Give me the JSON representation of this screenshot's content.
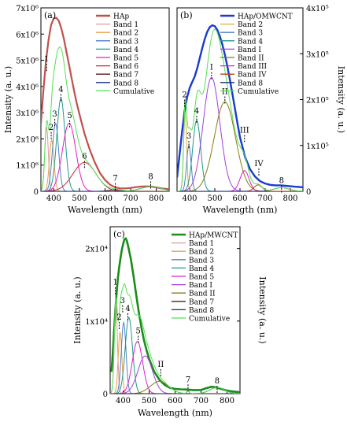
{
  "figure": {
    "aria": "Photoluminescence band deconvolution panels"
  },
  "chart_data": [
    {
      "type": "line",
      "panel_label": "(a)",
      "xlabel": "Wavelength (nm)",
      "ylabel": "Intensity (a. u.)",
      "ylabel_side": "left",
      "xlim": [
        350,
        850
      ],
      "xticks": [
        400,
        500,
        600,
        700,
        800
      ],
      "ylim": [
        0,
        7000000
      ],
      "yticks": [
        {
          "value": 0,
          "label": "0"
        },
        {
          "value": 1000000,
          "label": "1x10⁶"
        },
        {
          "value": 2000000,
          "label": "2x10⁶"
        },
        {
          "value": 3000000,
          "label": "3x10⁶"
        },
        {
          "value": 4000000,
          "label": "4x10⁶"
        },
        {
          "value": 5000000,
          "label": "5x10⁶"
        },
        {
          "value": 6000000,
          "label": "6x10⁶"
        },
        {
          "value": 7000000,
          "label": "7x10⁶"
        }
      ],
      "series": [
        {
          "name": "HAp",
          "kind": "main",
          "color": "#c0504d",
          "width": 2.2,
          "x": [
            350,
            360,
            370,
            380,
            390,
            400,
            410,
            420,
            430,
            440,
            450,
            460,
            470,
            480,
            490,
            500,
            520,
            540,
            560,
            580,
            600,
            620,
            640,
            660,
            680,
            700,
            720,
            740,
            760,
            780,
            800,
            820,
            850
          ],
          "y": [
            2600000,
            3900000,
            5000000,
            5800000,
            6350000,
            6600000,
            6620000,
            6500000,
            6200000,
            5800000,
            5300000,
            4800000,
            4300000,
            3800000,
            3350000,
            2950000,
            2200000,
            1600000,
            1100000,
            700000,
            430000,
            250000,
            150000,
            110000,
            110000,
            130000,
            160000,
            180000,
            190000,
            180000,
            150000,
            110000,
            80000
          ]
        },
        {
          "name": "Band 1",
          "kind": "band",
          "color": "#e39a9a",
          "center": 372,
          "amp": 2450000,
          "sigma": 7
        },
        {
          "name": "Band 2",
          "kind": "band",
          "color": "#e8a24a",
          "center": 392,
          "amp": 1950000,
          "sigma": 9
        },
        {
          "name": "Band 3",
          "kind": "band",
          "color": "#4f7fc4",
          "center": 407,
          "amp": 2600000,
          "sigma": 12
        },
        {
          "name": "Band 4",
          "kind": "band",
          "color": "#1f9a8a",
          "center": 428,
          "amp": 3550000,
          "sigma": 16
        },
        {
          "name": "Band 5",
          "kind": "band",
          "color": "#e020c8",
          "center": 460,
          "amp": 2600000,
          "sigma": 26
        },
        {
          "name": "Band 6",
          "kind": "band",
          "color": "#c62838",
          "center": 520,
          "amp": 1100000,
          "sigma": 45
        },
        {
          "name": "Band 7",
          "kind": "band",
          "color": "#5a1a1a",
          "center": 640,
          "amp": 60000,
          "sigma": 25
        },
        {
          "name": "Band 8",
          "kind": "band",
          "color": "#1a2a7a",
          "center": 780,
          "amp": 180000,
          "sigma": 40
        },
        {
          "name": "Cumulative",
          "kind": "cumulative",
          "color": "#55e055",
          "width": 1
        }
      ],
      "peak_labels": [
        {
          "text": "1",
          "x": 372,
          "y": 4950000
        },
        {
          "text": "2",
          "x": 390,
          "y": 2350000
        },
        {
          "text": "3",
          "x": 404,
          "y": 2850000
        },
        {
          "text": "4",
          "x": 428,
          "y": 3800000
        },
        {
          "text": "5",
          "x": 462,
          "y": 2800000
        },
        {
          "text": "6",
          "x": 520,
          "y": 1250000
        },
        {
          "text": "7",
          "x": 640,
          "y": 400000
        },
        {
          "text": "8",
          "x": 778,
          "y": 470000
        }
      ]
    },
    {
      "type": "line",
      "panel_label": "(b)",
      "xlabel": "Wavelength (nm)",
      "ylabel": "Intensity (a. u.)",
      "ylabel_side": "right",
      "xlim": [
        350,
        850
      ],
      "xticks": [
        400,
        500,
        600,
        700,
        800
      ],
      "ylim": [
        0,
        400000
      ],
      "yticks": [
        {
          "value": 0,
          "label": "0"
        },
        {
          "value": 100000,
          "label": "1x10⁵"
        },
        {
          "value": 200000,
          "label": "2x10⁵"
        },
        {
          "value": 300000,
          "label": "3x10⁵"
        },
        {
          "value": 400000,
          "label": "4x10⁵"
        }
      ],
      "series": [
        {
          "name": "HAp/OMWCNT",
          "kind": "main",
          "color": "#1a3ad0",
          "width": 2.4,
          "x": [
            350,
            360,
            370,
            380,
            390,
            400,
            410,
            420,
            430,
            440,
            450,
            460,
            470,
            480,
            490,
            500,
            510,
            520,
            530,
            540,
            550,
            560,
            570,
            580,
            590,
            600,
            620,
            640,
            660,
            680,
            700,
            720,
            740,
            760,
            780,
            800,
            820,
            850
          ],
          "y": [
            30000,
            80000,
            130000,
            175000,
            205000,
            225000,
            238000,
            250000,
            268000,
            290000,
            312000,
            332000,
            348000,
            358000,
            362000,
            360000,
            352000,
            338000,
            320000,
            298000,
            272000,
            243000,
            212000,
            180000,
            148000,
            118000,
            75000,
            48000,
            32000,
            22000,
            17000,
            14000,
            13000,
            13000,
            12000,
            11000,
            10000,
            9000
          ]
        },
        {
          "name": "Band 2",
          "kind": "band",
          "color": "#d4b040",
          "center": 382,
          "amp": 170000,
          "sigma": 6
        },
        {
          "name": "Band 3",
          "kind": "band",
          "color": "#4f7fc4",
          "center": 397,
          "amp": 100000,
          "sigma": 9
        },
        {
          "name": "Band 4",
          "kind": "band",
          "color": "#1f9a8a",
          "center": 428,
          "amp": 155000,
          "sigma": 16
        },
        {
          "name": "Band I",
          "kind": "band",
          "color": "#a040e0",
          "center": 487,
          "amp": 248000,
          "sigma": 33
        },
        {
          "name": "Band II",
          "kind": "band",
          "color": "#8a7a10",
          "center": 540,
          "amp": 195000,
          "sigma": 42
        },
        {
          "name": "Band III",
          "kind": "band",
          "color": "#e020c8",
          "center": 618,
          "amp": 45000,
          "sigma": 18
        },
        {
          "name": "Band IV",
          "kind": "band",
          "color": "#c04010",
          "center": 672,
          "amp": 14000,
          "sigma": 16
        },
        {
          "name": "Band 8",
          "kind": "band",
          "color": "#1a2a7a",
          "center": 765,
          "amp": 8000,
          "sigma": 30
        },
        {
          "name": "Cumulative",
          "kind": "cumulative",
          "color": "#55e055",
          "width": 1
        }
      ],
      "peak_labels": [
        {
          "text": "2",
          "x": 380,
          "y": 205000
        },
        {
          "text": "3",
          "x": 397,
          "y": 115000
        },
        {
          "text": "4",
          "x": 428,
          "y": 170000
        },
        {
          "text": "I",
          "x": 487,
          "y": 265000
        },
        {
          "text": "II",
          "x": 540,
          "y": 212000
        },
        {
          "text": "III",
          "x": 618,
          "y": 128000
        },
        {
          "text": "IV",
          "x": 675,
          "y": 55000
        },
        {
          "text": "8",
          "x": 765,
          "y": 18000
        }
      ]
    },
    {
      "type": "line",
      "panel_label": "(c)",
      "xlabel": "Wavelength (nm)",
      "ylabel": "Intensity (a. u.)",
      "ylabel_side": "right",
      "xlim": [
        350,
        850
      ],
      "xticks": [
        400,
        500,
        600,
        700,
        800
      ],
      "ylim": [
        0,
        23000
      ],
      "yticks": [
        {
          "value": 0,
          "label": "0"
        },
        {
          "value": 10000,
          "label": "1x10⁴"
        },
        {
          "value": 20000,
          "label": "2x10⁴"
        }
      ],
      "series": [
        {
          "name": "HAp/MWCNT",
          "kind": "main",
          "color": "#1a8c1a",
          "width": 2.6,
          "x": [
            355,
            360,
            365,
            370,
            375,
            380,
            385,
            390,
            395,
            400,
            405,
            410,
            415,
            420,
            430,
            440,
            450,
            460,
            470,
            480,
            490,
            500,
            520,
            540,
            560,
            580,
            600,
            620,
            640,
            660,
            680,
            700,
            720,
            740,
            760,
            780,
            800,
            820,
            850
          ],
          "y": [
            3000,
            5500,
            8500,
            11500,
            14000,
            16000,
            17500,
            18700,
            19800,
            20600,
            21300,
            21400,
            21000,
            20200,
            18500,
            16200,
            13700,
            11300,
            9200,
            7400,
            6000,
            4800,
            3000,
            1900,
            1200,
            800,
            650,
            600,
            580,
            520,
            480,
            500,
            750,
            950,
            850,
            620,
            420,
            300,
            200
          ]
        },
        {
          "name": "Band 1",
          "kind": "band",
          "color": "#e39a9a",
          "center": 372,
          "amp": 12500,
          "sigma": 6
        },
        {
          "name": "Band 2",
          "kind": "band",
          "color": "#e8a24a",
          "center": 388,
          "amp": 8500,
          "sigma": 7
        },
        {
          "name": "Band 3",
          "kind": "band",
          "color": "#4f7fc4",
          "center": 402,
          "amp": 9800,
          "sigma": 9
        },
        {
          "name": "Band 4",
          "kind": "band",
          "color": "#1f9a8a",
          "center": 422,
          "amp": 10500,
          "sigma": 14
        },
        {
          "name": "Band 5",
          "kind": "band",
          "color": "#e020c8",
          "center": 455,
          "amp": 7200,
          "sigma": 20
        },
        {
          "name": "Band I",
          "kind": "band",
          "color": "#a040e0",
          "center": 485,
          "amp": 5200,
          "sigma": 28
        },
        {
          "name": "Band II",
          "kind": "band",
          "color": "#8a7a10",
          "center": 540,
          "amp": 1700,
          "sigma": 35
        },
        {
          "name": "Band 7",
          "kind": "band",
          "color": "#5a1a1a",
          "center": 650,
          "amp": 500,
          "sigma": 4
        },
        {
          "name": "Band 8",
          "kind": "band",
          "color": "#1a2a7a",
          "center": 762,
          "amp": 850,
          "sigma": 28
        },
        {
          "name": "Cumulative",
          "kind": "cumulative",
          "color": "#55e055",
          "width": 1
        }
      ],
      "peak_labels": [
        {
          "text": "1",
          "x": 370,
          "y": 15000
        },
        {
          "text": "2",
          "x": 385,
          "y": 10200
        },
        {
          "text": "3",
          "x": 398,
          "y": 12500
        },
        {
          "text": "4",
          "x": 418,
          "y": 11400
        },
        {
          "text": "5",
          "x": 458,
          "y": 8300
        },
        {
          "text": "II",
          "x": 545,
          "y": 3700
        },
        {
          "text": "7",
          "x": 650,
          "y": 1600
        },
        {
          "text": "8",
          "x": 762,
          "y": 1400
        }
      ]
    }
  ]
}
